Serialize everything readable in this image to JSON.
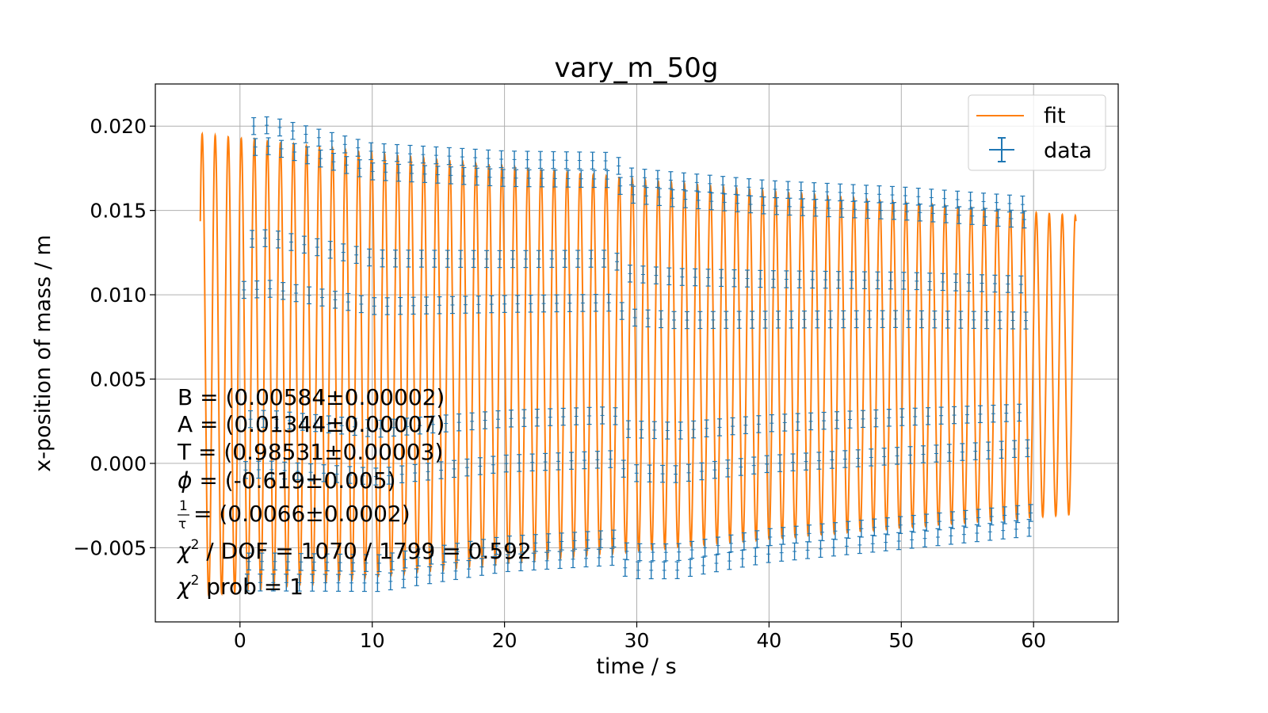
{
  "chart_data": {
    "type": "line",
    "title": "vary_m_50g",
    "xlabel": "time / s",
    "ylabel": "x-position of mass / m",
    "xlim": [
      -6.4,
      66.4
    ],
    "ylim": [
      -0.0094,
      0.0225
    ],
    "x_ticks": [
      0,
      10,
      20,
      30,
      40,
      50,
      60
    ],
    "x_tick_labels": [
      "0",
      "10",
      "20",
      "30",
      "40",
      "50",
      "60"
    ],
    "y_ticks": [
      -0.005,
      0.0,
      0.005,
      0.01,
      0.015,
      0.02
    ],
    "y_tick_labels": [
      "−0.005",
      "0.000",
      "0.005",
      "0.010",
      "0.015",
      "0.020"
    ],
    "grid": true,
    "legend": {
      "placement": "top-right",
      "entries": [
        "fit",
        "data"
      ]
    },
    "colors": {
      "fit": "#ff7f0e",
      "data": "#1f77b4",
      "grid": "#b0b0b0"
    },
    "fit_model": {
      "B": 0.00584,
      "A": 0.01344,
      "T": 0.98531,
      "phi": -0.619,
      "inv_tau": 0.0066,
      "t_start": -3.0,
      "t_end": 63.2
    },
    "series": [
      {
        "name": "fit",
        "kind": "line",
        "x_range": [
          -3.0,
          63.2
        ]
      },
      {
        "name": "data",
        "kind": "errorbar",
        "x_range": [
          0.3,
          59.9
        ],
        "y_error": 0.0005,
        "envelope_max": [
          [
            0.3,
            0.0205
          ],
          [
            2.3,
            0.0206
          ],
          [
            10,
            0.019
          ],
          [
            20,
            0.0185
          ],
          [
            28.3,
            0.0184
          ],
          [
            29.3,
            0.0175
          ],
          [
            40,
            0.0167
          ],
          [
            50,
            0.0163
          ],
          [
            59.7,
            0.0157
          ]
        ],
        "envelope_min": [
          [
            0.3,
            -0.0076
          ],
          [
            10.6,
            -0.0076
          ],
          [
            20,
            -0.0064
          ],
          [
            28.3,
            -0.006
          ],
          [
            29.3,
            -0.0068
          ],
          [
            33,
            -0.0068
          ],
          [
            40,
            -0.0058
          ],
          [
            50,
            -0.005
          ],
          [
            59.7,
            -0.0042
          ]
        ]
      }
    ],
    "annotations": {
      "B": "B = (0.00584±0.00002)",
      "A": "A = (0.01344±0.00007)",
      "T": "T = (0.98531±0.00003)",
      "phi_symbol": "ϕ",
      "phi_text": " = (-0.619±0.005)",
      "tau_num": "1",
      "tau_den": "τ",
      "tau_text": " = (0.0066±0.0002)",
      "chi_symbol": "χ",
      "chi_sup": "2",
      "chi_dof_text": " / DOF = 1070 / 1799 = 0.592",
      "chi_prob_text": " prob = 1"
    }
  }
}
